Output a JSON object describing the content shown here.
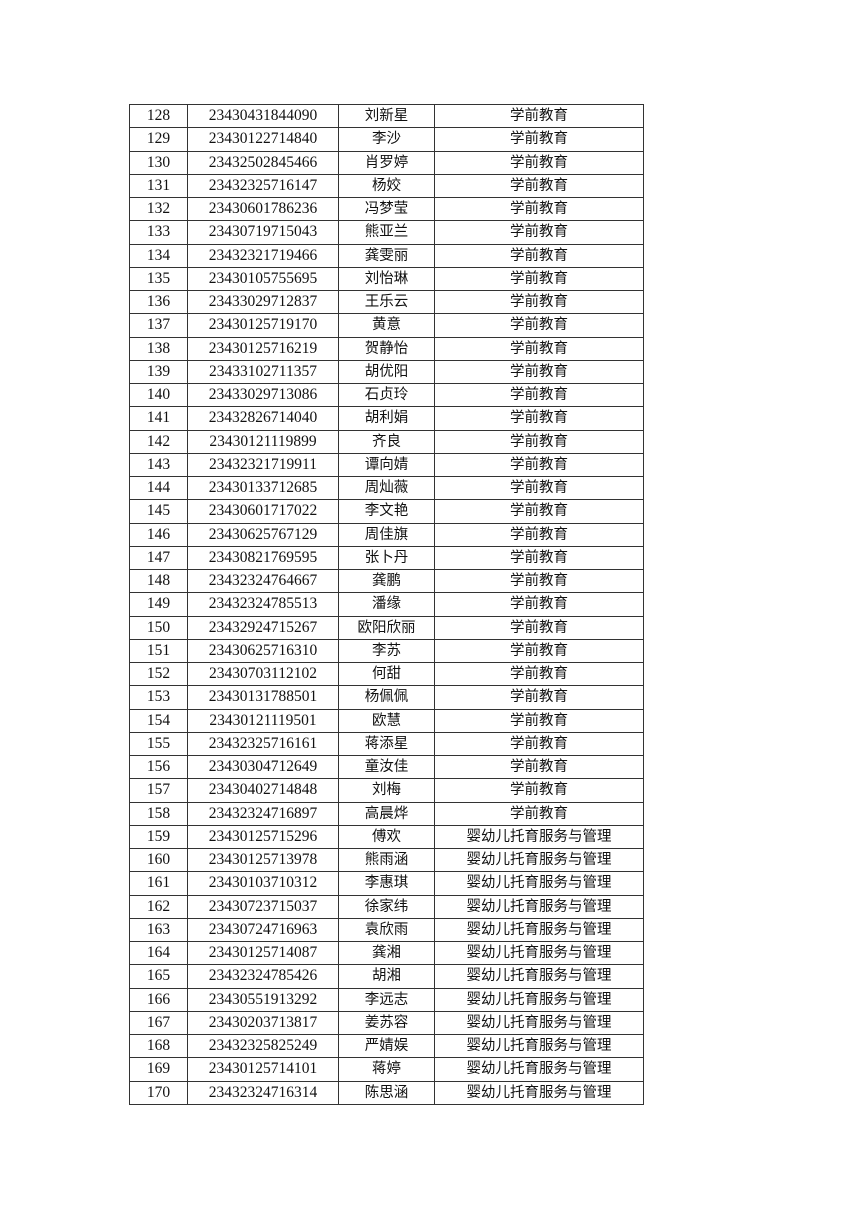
{
  "table": {
    "rows": [
      [
        "128",
        "23430431844090",
        "刘新星",
        "学前教育"
      ],
      [
        "129",
        "23430122714840",
        "李沙",
        "学前教育"
      ],
      [
        "130",
        "23432502845466",
        "肖罗婷",
        "学前教育"
      ],
      [
        "131",
        "23432325716147",
        "杨姣",
        "学前教育"
      ],
      [
        "132",
        "23430601786236",
        "冯梦莹",
        "学前教育"
      ],
      [
        "133",
        "23430719715043",
        "熊亚兰",
        "学前教育"
      ],
      [
        "134",
        "23432321719466",
        "龚雯丽",
        "学前教育"
      ],
      [
        "135",
        "23430105755695",
        "刘怡琳",
        "学前教育"
      ],
      [
        "136",
        "23433029712837",
        "王乐云",
        "学前教育"
      ],
      [
        "137",
        "23430125719170",
        "黄意",
        "学前教育"
      ],
      [
        "138",
        "23430125716219",
        "贺静怡",
        "学前教育"
      ],
      [
        "139",
        "23433102711357",
        "胡优阳",
        "学前教育"
      ],
      [
        "140",
        "23433029713086",
        "石贞玲",
        "学前教育"
      ],
      [
        "141",
        "23432826714040",
        "胡利娟",
        "学前教育"
      ],
      [
        "142",
        "23430121119899",
        "齐良",
        "学前教育"
      ],
      [
        "143",
        "23432321719911",
        "谭向婧",
        "学前教育"
      ],
      [
        "144",
        "23430133712685",
        "周灿薇",
        "学前教育"
      ],
      [
        "145",
        "23430601717022",
        "李文艳",
        "学前教育"
      ],
      [
        "146",
        "23430625767129",
        "周佳旗",
        "学前教育"
      ],
      [
        "147",
        "23430821769595",
        "张卜丹",
        "学前教育"
      ],
      [
        "148",
        "23432324764667",
        "龚鹏",
        "学前教育"
      ],
      [
        "149",
        "23432324785513",
        "潘缘",
        "学前教育"
      ],
      [
        "150",
        "23432924715267",
        "欧阳欣丽",
        "学前教育"
      ],
      [
        "151",
        "23430625716310",
        "李苏",
        "学前教育"
      ],
      [
        "152",
        "23430703112102",
        "何甜",
        "学前教育"
      ],
      [
        "153",
        "23430131788501",
        "杨佩佩",
        "学前教育"
      ],
      [
        "154",
        "23430121119501",
        "欧慧",
        "学前教育"
      ],
      [
        "155",
        "23432325716161",
        "蒋添星",
        "学前教育"
      ],
      [
        "156",
        "23430304712649",
        "童汝佳",
        "学前教育"
      ],
      [
        "157",
        "23430402714848",
        "刘梅",
        "学前教育"
      ],
      [
        "158",
        "23432324716897",
        "高晨烨",
        "学前教育"
      ],
      [
        "159",
        "23430125715296",
        "傅欢",
        "婴幼儿托育服务与管理"
      ],
      [
        "160",
        "23430125713978",
        "熊雨涵",
        "婴幼儿托育服务与管理"
      ],
      [
        "161",
        "23430103710312",
        "李惠琪",
        "婴幼儿托育服务与管理"
      ],
      [
        "162",
        "23430723715037",
        "徐家纬",
        "婴幼儿托育服务与管理"
      ],
      [
        "163",
        "23430724716963",
        "袁欣雨",
        "婴幼儿托育服务与管理"
      ],
      [
        "164",
        "23430125714087",
        "龚湘",
        "婴幼儿托育服务与管理"
      ],
      [
        "165",
        "23432324785426",
        "胡湘",
        "婴幼儿托育服务与管理"
      ],
      [
        "166",
        "23430551913292",
        "李远志",
        "婴幼儿托育服务与管理"
      ],
      [
        "167",
        "23430203713817",
        "姜苏容",
        "婴幼儿托育服务与管理"
      ],
      [
        "168",
        "23432325825249",
        "严婧娱",
        "婴幼儿托育服务与管理"
      ],
      [
        "169",
        "23430125714101",
        "蒋婷",
        "婴幼儿托育服务与管理"
      ],
      [
        "170",
        "23432324716314",
        "陈思涵",
        "婴幼儿托育服务与管理"
      ]
    ]
  }
}
